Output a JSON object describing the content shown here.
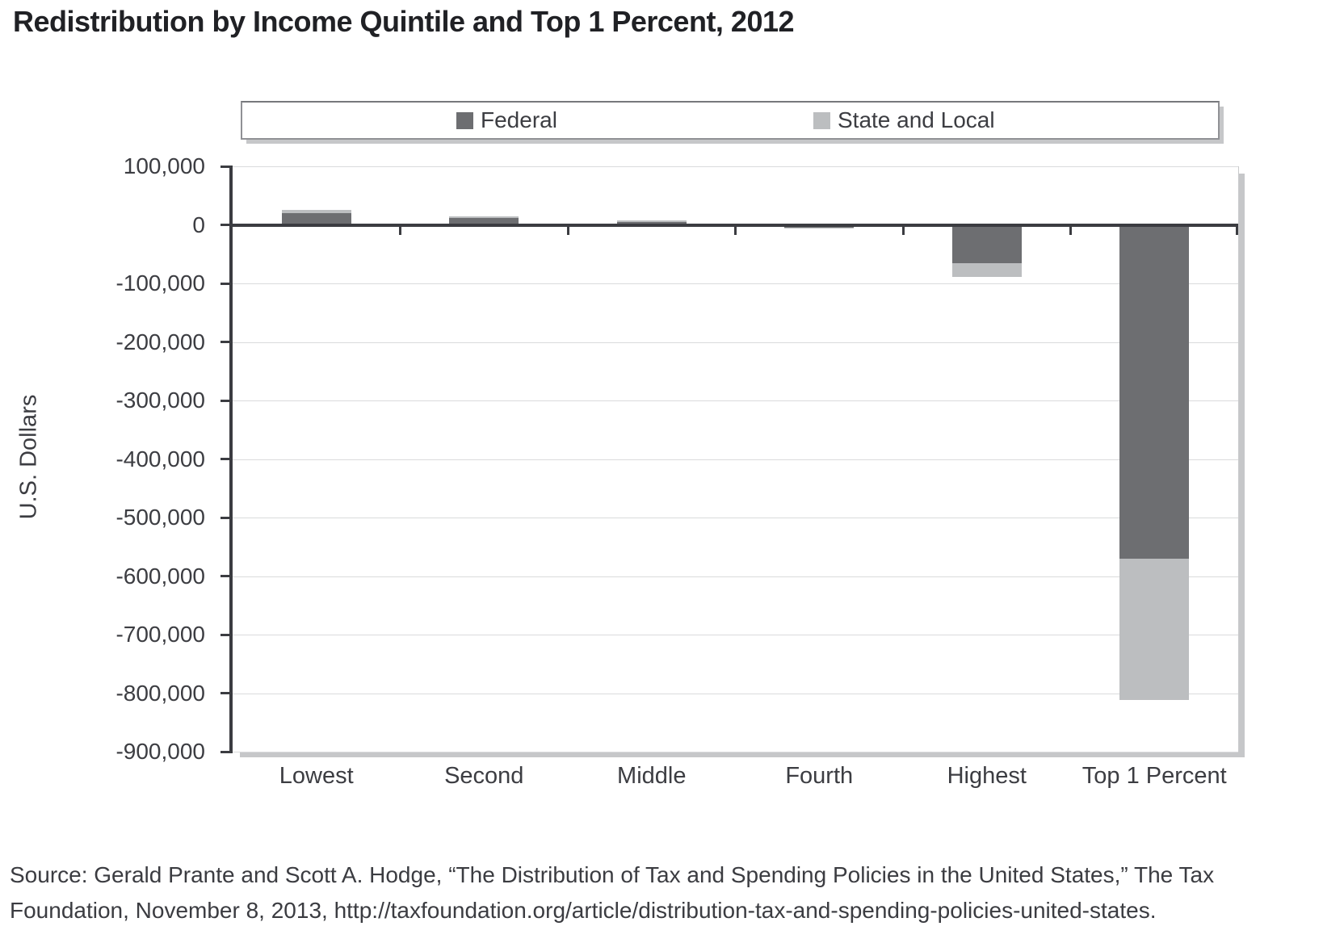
{
  "title": "Redistribution by Income Quintile and Top 1 Percent, 2012",
  "chart_data": {
    "type": "bar",
    "stacked": true,
    "title": "Redistribution by Income Quintile and Top 1 Percent, 2012",
    "categories": [
      "Lowest",
      "Second",
      "Middle",
      "Fourth",
      "Highest",
      "Top 1 Percent"
    ],
    "series": [
      {
        "name": "Federal",
        "color": "#6d6e71",
        "values": [
          20000,
          12000,
          5000,
          -5000,
          -66000,
          -570000
        ]
      },
      {
        "name": "State and Local",
        "color": "#bcbec0",
        "values": [
          6000,
          3000,
          2000,
          -1000,
          -23000,
          -242000
        ]
      }
    ],
    "xlabel": "",
    "ylabel": "U.S. Dollars",
    "ylim": [
      -900000,
      100000
    ],
    "ytick_step": 100000,
    "grid": true,
    "legend_position": "top",
    "colors": {
      "axis": "#3b3c41",
      "gridline": "#dadbdc",
      "text": "#3c3d42",
      "title_text": "#202125",
      "legend_border": "#909195",
      "shadow": "#c6c7c9"
    }
  },
  "source": {
    "line1": "Source: Gerald Prante and Scott A. Hodge, “The Distribution of Tax and Spending Policies in the United States,” The Tax",
    "line2": "Foundation, November 8, 2013, http://taxfoundation.org/article/distribution-tax-and-spending-policies-united-states."
  }
}
